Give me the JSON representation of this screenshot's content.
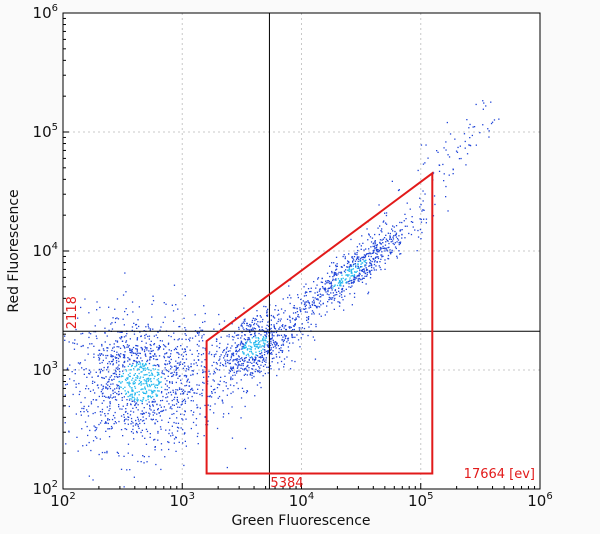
{
  "chart_data": {
    "type": "scatter",
    "x_scale": "log",
    "y_scale": "log",
    "xlabel": "Green Fluorescence",
    "ylabel": "Red Fluorescence",
    "xlim": [
      100,
      1000000
    ],
    "ylim": [
      100,
      1000000
    ],
    "x_tick_base": "10",
    "x_tick_exponents": [
      "2",
      "3",
      "4",
      "5",
      "6"
    ],
    "y_tick_base": "10",
    "y_tick_exponents": [
      "2",
      "3",
      "4",
      "5",
      "6"
    ],
    "grid": true,
    "threshold_x": 5384,
    "threshold_x_label": "5384",
    "threshold_y": 2118,
    "threshold_y_label": "2118",
    "event_count_label": "17664 [ev]",
    "gate_polygon": [
      [
        1600,
        135
      ],
      [
        1600,
        1750
      ],
      [
        125000,
        45000
      ],
      [
        125000,
        135
      ]
    ],
    "point_color": "#1f44d8",
    "core_color": "#22b8ee",
    "gate_color": "#e21a1a",
    "clusters": [
      {
        "x": 450,
        "y": 800,
        "spread_x": 0.32,
        "spread_y": 0.28
      },
      {
        "x": 4000,
        "y": 1600,
        "spread_x": 0.18,
        "spread_y": 0.18
      },
      {
        "x": 25000,
        "y": 6500,
        "spread_x": 0.25,
        "spread_y": 0.22
      }
    ]
  }
}
